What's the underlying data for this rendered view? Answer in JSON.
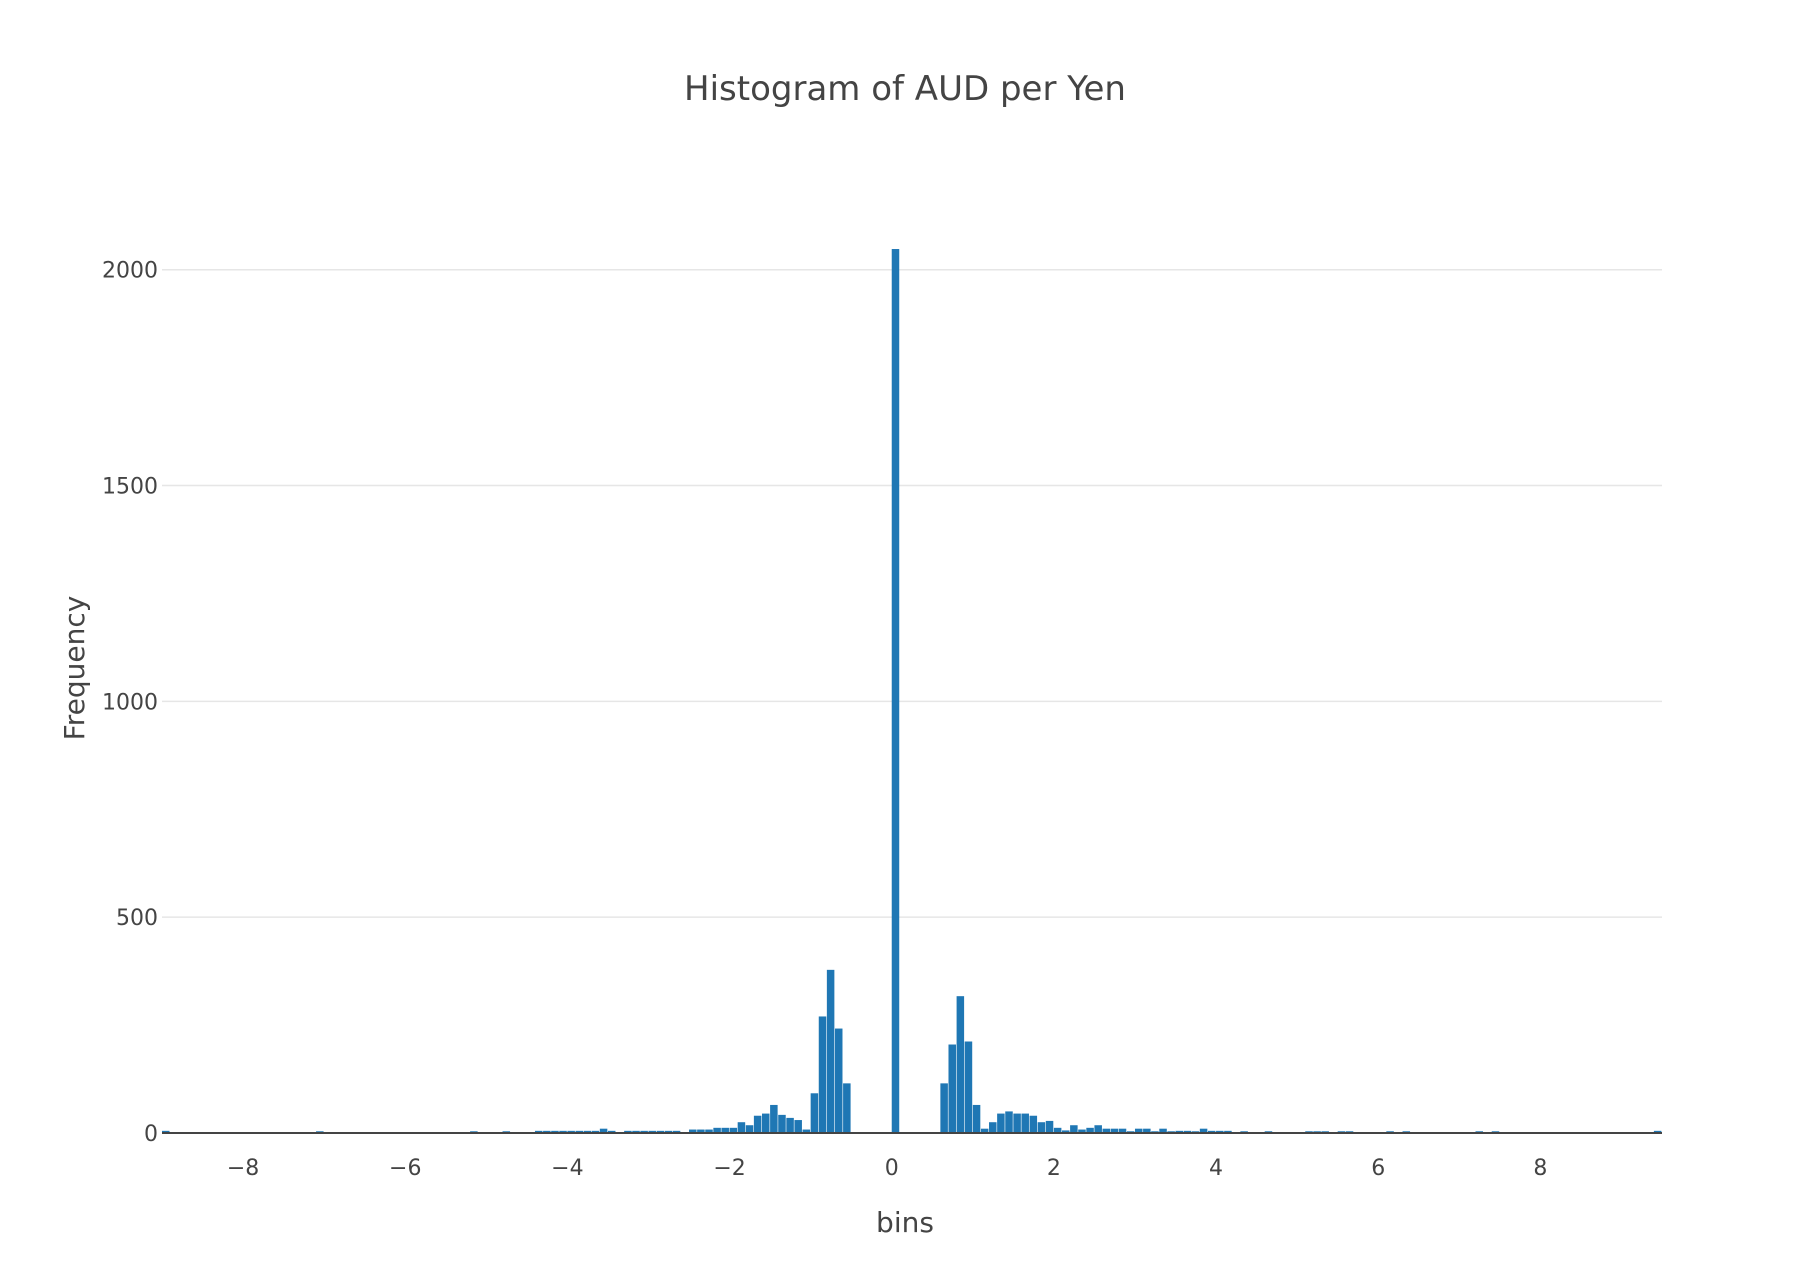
{
  "chart_data": {
    "type": "bar",
    "title": "Histogram of AUD per Yen",
    "xlabel": "bins",
    "ylabel": "Frequency",
    "bin_width": 0.1,
    "xlim": [
      -9.0,
      9.5
    ],
    "ylim": [
      0,
      2150
    ],
    "x_ticks": [
      -8,
      -6,
      -4,
      -2,
      0,
      2,
      4,
      6,
      8
    ],
    "x_tick_labels": [
      "−8",
      "−6",
      "−4",
      "−2",
      "0",
      "2",
      "4",
      "6",
      "8"
    ],
    "y_ticks": [
      0,
      500,
      1000,
      1500,
      2000
    ],
    "y_tick_labels": [
      "0",
      "500",
      "1000",
      "1500",
      "2000"
    ],
    "grid": true,
    "bar_color": "#1f77b4",
    "series": [
      {
        "name": "AUD per Yen",
        "x": [
          -9.0,
          -7.1,
          -5.2,
          -4.8,
          -4.4,
          -4.3,
          -4.2,
          -4.1,
          -4.0,
          -3.9,
          -3.8,
          -3.7,
          -3.6,
          -3.5,
          -3.3,
          -3.2,
          -3.1,
          -3.0,
          -2.9,
          -2.8,
          -2.7,
          -2.5,
          -2.4,
          -2.3,
          -2.2,
          -2.1,
          -2.0,
          -1.9,
          -1.8,
          -1.7,
          -1.6,
          -1.5,
          -1.4,
          -1.3,
          -1.2,
          -1.1,
          -1.0,
          -0.9,
          -0.8,
          -0.7,
          -0.6,
          0.0,
          0.6,
          0.7,
          0.8,
          0.9,
          1.0,
          1.1,
          1.2,
          1.3,
          1.4,
          1.5,
          1.6,
          1.7,
          1.8,
          1.9,
          2.0,
          2.1,
          2.2,
          2.3,
          2.4,
          2.5,
          2.6,
          2.7,
          2.8,
          2.9,
          3.0,
          3.1,
          3.2,
          3.3,
          3.4,
          3.5,
          3.6,
          3.7,
          3.8,
          3.9,
          4.0,
          4.1,
          4.3,
          4.6,
          5.1,
          5.2,
          5.3,
          5.5,
          5.6,
          6.1,
          6.3,
          7.2,
          7.4,
          9.4
        ],
        "values": [
          5,
          4,
          4,
          4,
          5,
          5,
          5,
          5,
          5,
          5,
          5,
          5,
          10,
          5,
          5,
          5,
          5,
          5,
          5,
          5,
          5,
          8,
          8,
          8,
          12,
          12,
          12,
          25,
          18,
          40,
          45,
          65,
          42,
          35,
          30,
          8,
          92,
          270,
          378,
          242,
          115,
          2048,
          115,
          205,
          317,
          212,
          65,
          10,
          25,
          45,
          50,
          45,
          45,
          40,
          25,
          28,
          12,
          6,
          18,
          8,
          12,
          18,
          10,
          10,
          10,
          4,
          10,
          10,
          4,
          10,
          4,
          5,
          5,
          4,
          10,
          5,
          5,
          5,
          4,
          4,
          4,
          4,
          4,
          4,
          4,
          4,
          4,
          4,
          4,
          5
        ]
      }
    ]
  }
}
